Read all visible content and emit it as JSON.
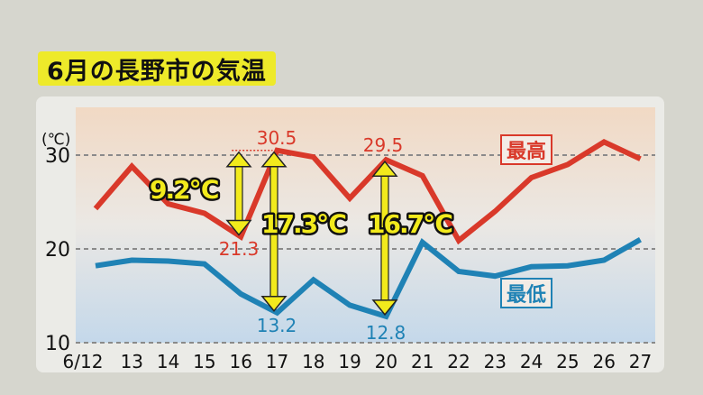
{
  "title": "6月の長野市の気温",
  "chart_data": {
    "type": "line",
    "title": "6月の長野市の気温",
    "xlabel": "",
    "ylabel": "(℃)",
    "ylim": [
      10,
      33
    ],
    "yticks": [
      10,
      20,
      30
    ],
    "categories": [
      "6/12",
      "13",
      "14",
      "15",
      "16",
      "17",
      "18",
      "19",
      "20",
      "21",
      "22",
      "23",
      "24",
      "25",
      "26",
      "27"
    ],
    "series": [
      {
        "name": "最高",
        "color": "#d9392a",
        "values": [
          24.3,
          28.8,
          24.8,
          23.8,
          21.3,
          30.5,
          29.8,
          25.4,
          29.5,
          27.8,
          20.9,
          24.0,
          27.6,
          29.0,
          31.4,
          29.6
        ]
      },
      {
        "name": "最低",
        "color": "#1f82b5",
        "values": [
          18.2,
          18.8,
          18.7,
          18.4,
          15.2,
          13.2,
          16.7,
          14.0,
          12.8,
          20.7,
          17.6,
          17.1,
          18.1,
          18.2,
          18.8,
          21.0
        ]
      }
    ],
    "annotations": [
      {
        "type": "label",
        "text": "30.5",
        "x": "17",
        "series": "最高"
      },
      {
        "type": "label",
        "text": "29.5",
        "x": "20",
        "series": "最高"
      },
      {
        "type": "label",
        "text": "21.3",
        "x": "16",
        "series": "最高"
      },
      {
        "type": "label",
        "text": "13.2",
        "x": "17",
        "series": "最低"
      },
      {
        "type": "label",
        "text": "12.8",
        "x": "20",
        "series": "最低"
      },
      {
        "type": "range",
        "text": "9.2℃",
        "x": "16",
        "from": 21.3,
        "to": 30.5
      },
      {
        "type": "range",
        "text": "17.3℃",
        "x": "17",
        "from": 13.2,
        "to": 30.5
      },
      {
        "type": "range",
        "text": "16.7℃",
        "x": "20",
        "from": 12.8,
        "to": 29.5
      }
    ],
    "grid": true,
    "legend": "inline"
  },
  "labels": {
    "unit": "(℃)",
    "high": "最高",
    "low": "最低",
    "diff1": "9.2℃",
    "diff2": "17.3℃",
    "diff3": "16.7℃",
    "v305": "30.5",
    "v295": "29.5",
    "v213": "21.3",
    "v132": "13.2",
    "v128": "12.8",
    "y30": "30",
    "y20": "20",
    "y10": "10"
  }
}
